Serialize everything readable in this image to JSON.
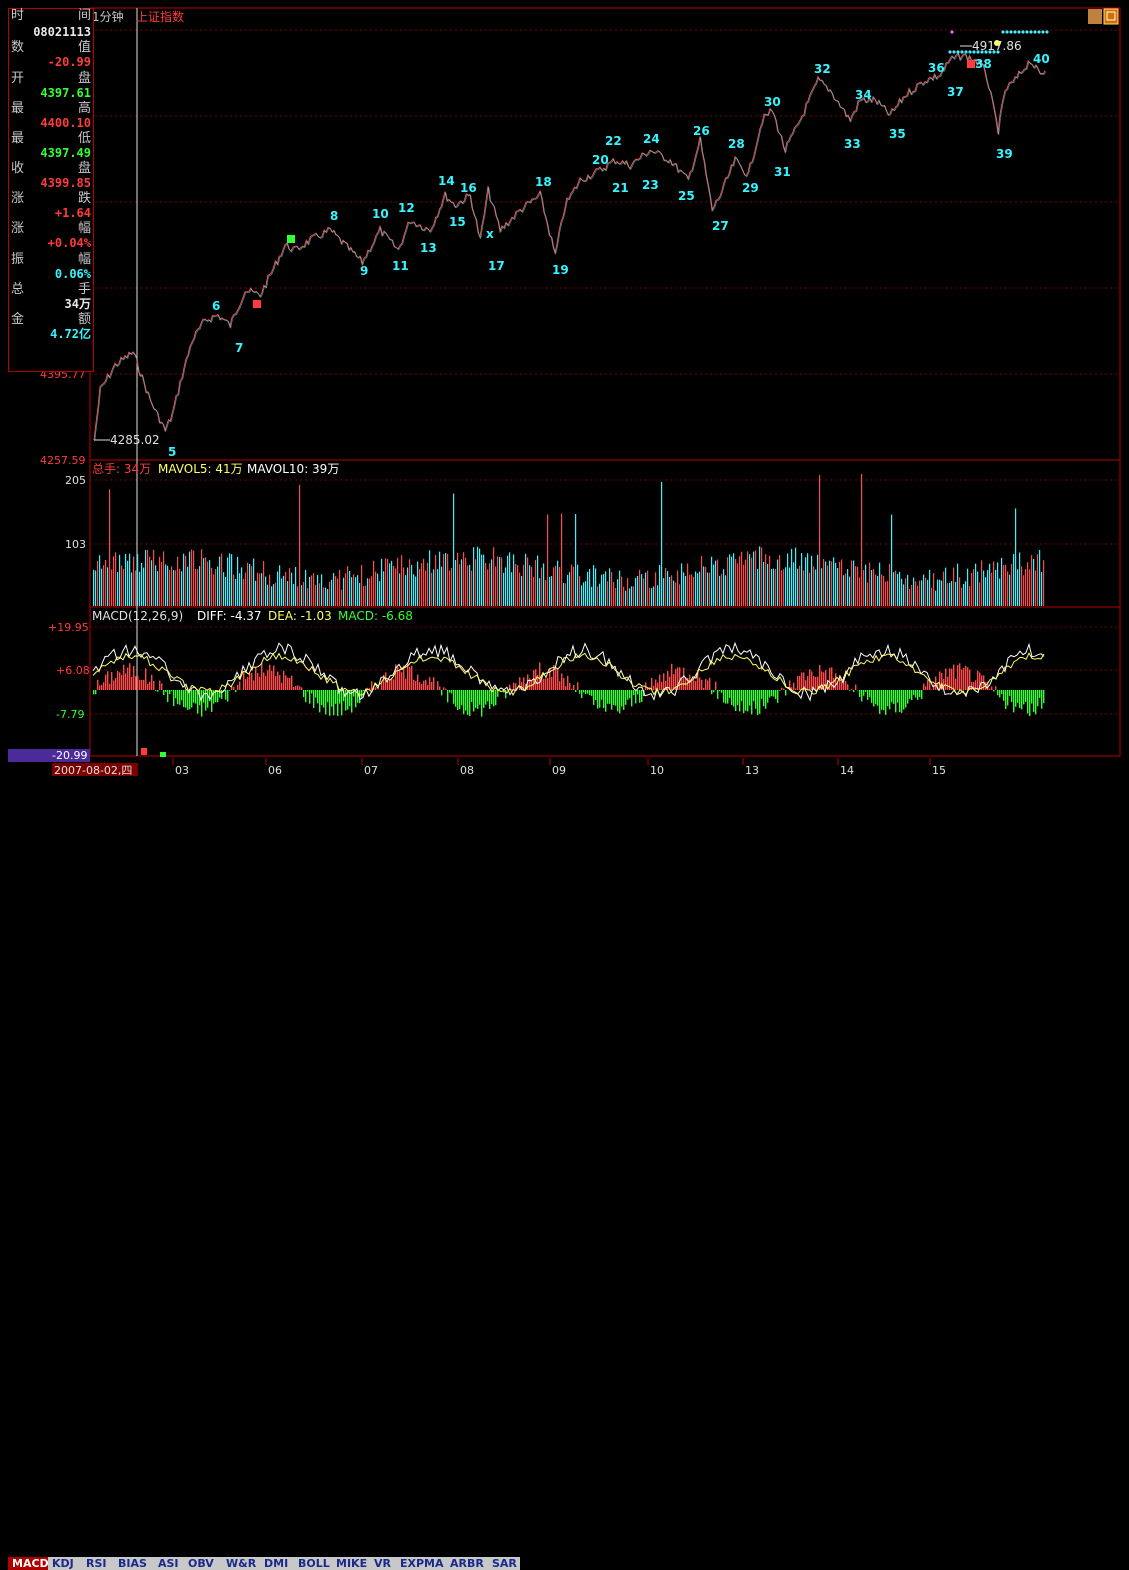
{
  "header": {
    "period": "1分钟",
    "index_name": "上证指数"
  },
  "info_panel": {
    "rows": [
      {
        "label": "时",
        "label2": "间",
        "value": ""
      },
      {
        "label": "",
        "label2": "",
        "value": "08021113"
      },
      {
        "label": "数",
        "label2": "值",
        "value": "-20.99"
      },
      {
        "label": "开",
        "label2": "盘",
        "value": "4397.61"
      },
      {
        "label": "最",
        "label2": "高",
        "value": "4400.10"
      },
      {
        "label": "最",
        "label2": "低",
        "value": "4397.49"
      },
      {
        "label": "收",
        "label2": "盘",
        "value": "4399.85"
      },
      {
        "label": "涨",
        "label2": "跌",
        "value": "+1.64"
      },
      {
        "label": "涨",
        "label2": "幅",
        "value": "+0.04%"
      },
      {
        "label": "振",
        "label2": "幅",
        "value": "0.06%"
      },
      {
        "label": "总",
        "label2": "手",
        "value": "34万"
      },
      {
        "label": "金",
        "label2": "额",
        "value": "4.72亿"
      }
    ]
  },
  "price_panel": {
    "axis_labels": [
      "4395.77",
      "4257.59"
    ],
    "low_marker": "4285.02",
    "high_marker": "4917.86",
    "wave_labels": [
      "5",
      "6",
      "7",
      "8",
      "9",
      "10",
      "11",
      "12",
      "13",
      "14",
      "15",
      "16",
      "x",
      "17",
      "18",
      "19",
      "20",
      "21",
      "22",
      "23",
      "24",
      "25",
      "26",
      "27",
      "28",
      "29",
      "30",
      "31",
      "32",
      "33",
      "34",
      "35",
      "36",
      "37",
      "38",
      "39",
      "40"
    ]
  },
  "volume_panel": {
    "title": "总手: 34万",
    "mavol5": "MAVOL5: 41万",
    "mavol10": "MAVOL10: 39万",
    "axis_labels": [
      "205",
      "103"
    ]
  },
  "macd_panel": {
    "title": "MACD(12,26,9)",
    "diff": "DIFF: -4.37",
    "dea": "DEA: -1.03",
    "macd": "MACD: -6.68",
    "axis_labels": [
      "+19.95",
      "+6.08",
      "-7.79",
      "-20.99"
    ]
  },
  "x_axis": {
    "date": "2007-08-02,四",
    "labels": [
      "03",
      "06",
      "07",
      "08",
      "09",
      "10",
      "13",
      "14",
      "15"
    ]
  },
  "tabs": [
    "MACD",
    "KDJ",
    "RSI",
    "BIAS",
    "ASI",
    "OBV",
    "W&R",
    "DMI",
    "BOLL",
    "MIKE",
    "VR",
    "EXPMA",
    "ARBR",
    "SAR"
  ],
  "active_tab": "MACD",
  "colors": {
    "up": "#ff3b3b",
    "down": "#33ff33",
    "cyan": "#36f5ff",
    "grid": "#7a0000",
    "yellow": "#ffff66",
    "white": "#ffffff"
  }
}
